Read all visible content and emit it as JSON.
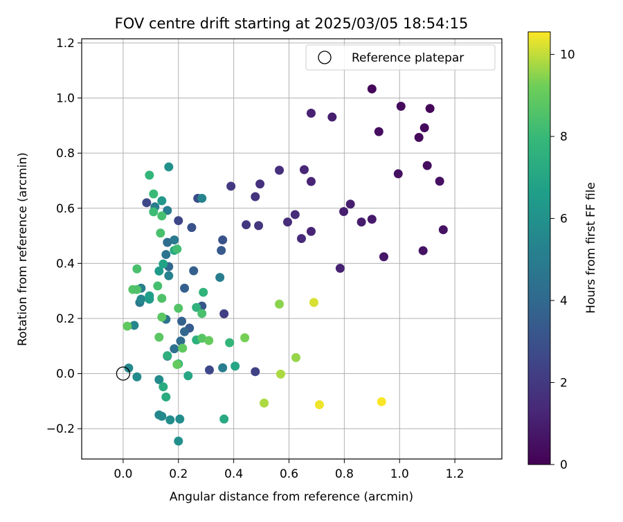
{
  "chart_data": {
    "type": "scatter",
    "title": "FOV centre drift starting at 2025/03/05 18:54:15",
    "xlabel": "Angular distance from reference (arcmin)",
    "ylabel": "Rotation from reference (arcmin)",
    "xlim": [
      -0.15,
      1.37
    ],
    "ylim": [
      -0.31,
      1.215
    ],
    "xticks": [
      0.0,
      0.2,
      0.4,
      0.6,
      0.8,
      1.0,
      1.2
    ],
    "xtick_labels": [
      "0.0",
      "0.2",
      "0.4",
      "0.6",
      "0.8",
      "1.0",
      "1.2"
    ],
    "yticks": [
      -0.2,
      0.0,
      0.2,
      0.4,
      0.6,
      0.8,
      1.0,
      1.2
    ],
    "ytick_labels": [
      "−0.2",
      "0.0",
      "0.2",
      "0.4",
      "0.6",
      "0.8",
      "1.0",
      "1.2"
    ],
    "grid": true,
    "legend": {
      "position": "top-right",
      "entries": [
        "Reference platepar"
      ]
    },
    "reference_point": {
      "x": 0.0,
      "y": 0.0
    },
    "colorbar": {
      "label": "Hours from first FF file",
      "min": 0,
      "max": 10.55,
      "ticks": [
        0,
        2,
        4,
        6,
        8,
        10
      ],
      "tick_labels": [
        "0",
        "2",
        "4",
        "6",
        "8",
        "10"
      ],
      "colormap": "viridis"
    },
    "points": [
      {
        "x": 0.9,
        "y": 1.033,
        "hours": 0.2
      },
      {
        "x": 1.005,
        "y": 0.97,
        "hours": 0.3
      },
      {
        "x": 1.11,
        "y": 0.962,
        "hours": 0.2
      },
      {
        "x": 1.09,
        "y": 0.892,
        "hours": 0.3
      },
      {
        "x": 1.07,
        "y": 0.857,
        "hours": 0.3
      },
      {
        "x": 0.925,
        "y": 0.878,
        "hours": 0.4
      },
      {
        "x": 1.1,
        "y": 0.755,
        "hours": 0.4
      },
      {
        "x": 0.995,
        "y": 0.725,
        "hours": 0.5
      },
      {
        "x": 1.145,
        "y": 0.698,
        "hours": 0.5
      },
      {
        "x": 1.158,
        "y": 0.522,
        "hours": 0.6
      },
      {
        "x": 1.085,
        "y": 0.446,
        "hours": 0.6
      },
      {
        "x": 0.943,
        "y": 0.424,
        "hours": 0.7
      },
      {
        "x": 0.9,
        "y": 0.56,
        "hours": 0.8
      },
      {
        "x": 0.862,
        "y": 0.55,
        "hours": 0.9
      },
      {
        "x": 0.822,
        "y": 0.615,
        "hours": 1.0
      },
      {
        "x": 0.798,
        "y": 0.588,
        "hours": 1.0
      },
      {
        "x": 0.785,
        "y": 0.382,
        "hours": 1.1
      },
      {
        "x": 0.756,
        "y": 0.931,
        "hours": 1.0
      },
      {
        "x": 0.68,
        "y": 0.945,
        "hours": 1.1
      },
      {
        "x": 0.68,
        "y": 0.697,
        "hours": 1.2
      },
      {
        "x": 0.655,
        "y": 0.74,
        "hours": 1.3
      },
      {
        "x": 0.68,
        "y": 0.516,
        "hours": 1.2
      },
      {
        "x": 0.645,
        "y": 0.49,
        "hours": 1.4
      },
      {
        "x": 0.622,
        "y": 0.577,
        "hours": 1.5
      },
      {
        "x": 0.595,
        "y": 0.55,
        "hours": 1.5
      },
      {
        "x": 0.565,
        "y": 0.738,
        "hours": 1.6
      },
      {
        "x": 0.495,
        "y": 0.688,
        "hours": 1.7
      },
      {
        "x": 0.478,
        "y": 0.642,
        "hours": 1.8
      },
      {
        "x": 0.49,
        "y": 0.537,
        "hours": 1.9
      },
      {
        "x": 0.445,
        "y": 0.54,
        "hours": 1.9
      },
      {
        "x": 0.39,
        "y": 0.68,
        "hours": 2.0
      },
      {
        "x": 0.365,
        "y": 0.217,
        "hours": 2.2
      },
      {
        "x": 0.478,
        "y": 0.007,
        "hours": 2.3
      },
      {
        "x": 0.312,
        "y": 0.013,
        "hours": 2.6
      },
      {
        "x": 0.36,
        "y": 0.485,
        "hours": 3.0
      },
      {
        "x": 0.355,
        "y": 0.447,
        "hours": 3.3
      },
      {
        "x": 0.27,
        "y": 0.636,
        "hours": 2.8
      },
      {
        "x": 0.248,
        "y": 0.53,
        "hours": 3.0
      },
      {
        "x": 0.2,
        "y": 0.555,
        "hours": 2.5
      },
      {
        "x": 0.085,
        "y": 0.62,
        "hours": 2.6
      },
      {
        "x": 0.285,
        "y": 0.245,
        "hours": 3.2
      },
      {
        "x": 0.24,
        "y": 0.165,
        "hours": 3.4
      },
      {
        "x": 0.255,
        "y": 0.373,
        "hours": 3.6
      },
      {
        "x": 0.222,
        "y": 0.31,
        "hours": 3.6
      },
      {
        "x": 0.212,
        "y": 0.19,
        "hours": 3.7
      },
      {
        "x": 0.222,
        "y": 0.152,
        "hours": 3.9
      },
      {
        "x": 0.208,
        "y": 0.118,
        "hours": 4.2
      },
      {
        "x": 0.16,
        "y": 0.063,
        "hours": 4.0
      },
      {
        "x": 0.185,
        "y": 0.09,
        "hours": 4.4
      },
      {
        "x": 0.155,
        "y": 0.197,
        "hours": 4.5
      },
      {
        "x": 0.165,
        "y": 0.388,
        "hours": 4.0
      },
      {
        "x": 0.155,
        "y": 0.432,
        "hours": 4.5
      },
      {
        "x": 0.16,
        "y": 0.476,
        "hours": 4.2
      },
      {
        "x": 0.185,
        "y": 0.485,
        "hours": 4.8
      },
      {
        "x": 0.165,
        "y": 0.355,
        "hours": 5.2
      },
      {
        "x": 0.35,
        "y": 0.349,
        "hours": 5.0
      },
      {
        "x": 0.285,
        "y": 0.636,
        "hours": 5.3
      },
      {
        "x": 0.115,
        "y": 0.605,
        "hours": 4.9
      },
      {
        "x": 0.16,
        "y": 0.592,
        "hours": 5.0
      },
      {
        "x": 0.36,
        "y": 0.021,
        "hours": 5.0
      },
      {
        "x": 0.06,
        "y": 0.258,
        "hours": 4.8
      },
      {
        "x": 0.065,
        "y": 0.31,
        "hours": 5.0
      },
      {
        "x": 0.065,
        "y": 0.27,
        "hours": 5.5
      },
      {
        "x": 0.04,
        "y": 0.175,
        "hours": 5.5
      },
      {
        "x": 0.02,
        "y": 0.02,
        "hours": 5.6
      },
      {
        "x": 0.05,
        "y": -0.012,
        "hours": 5.7
      },
      {
        "x": 0.13,
        "y": -0.022,
        "hours": 5.7
      },
      {
        "x": 0.13,
        "y": -0.15,
        "hours": 5.5
      },
      {
        "x": 0.14,
        "y": -0.155,
        "hours": 5.6
      },
      {
        "x": 0.17,
        "y": -0.168,
        "hours": 5.8
      },
      {
        "x": 0.205,
        "y": -0.165,
        "hours": 5.8
      },
      {
        "x": 0.2,
        "y": -0.245,
        "hours": 5.9
      },
      {
        "x": 0.165,
        "y": 0.75,
        "hours": 6.0
      },
      {
        "x": 0.14,
        "y": 0.627,
        "hours": 6.3
      },
      {
        "x": 0.095,
        "y": 0.27,
        "hours": 6.5
      },
      {
        "x": 0.095,
        "y": 0.282,
        "hours": 6.6
      },
      {
        "x": 0.13,
        "y": 0.372,
        "hours": 6.4
      },
      {
        "x": 0.145,
        "y": 0.398,
        "hours": 6.8
      },
      {
        "x": 0.235,
        "y": -0.008,
        "hours": 7.0
      },
      {
        "x": 0.405,
        "y": 0.027,
        "hours": 7.0
      },
      {
        "x": 0.365,
        "y": -0.165,
        "hours": 7.2
      },
      {
        "x": 0.145,
        "y": -0.048,
        "hours": 7.3
      },
      {
        "x": 0.155,
        "y": -0.085,
        "hours": 7.3
      },
      {
        "x": 0.185,
        "y": 0.447,
        "hours": 7.2
      },
      {
        "x": 0.16,
        "y": 0.065,
        "hours": 7.5
      },
      {
        "x": 0.265,
        "y": 0.122,
        "hours": 7.5
      },
      {
        "x": 0.265,
        "y": 0.24,
        "hours": 7.6
      },
      {
        "x": 0.29,
        "y": 0.295,
        "hours": 7.7
      },
      {
        "x": 0.385,
        "y": 0.112,
        "hours": 7.8
      },
      {
        "x": 0.2,
        "y": 0.035,
        "hours": 7.7
      },
      {
        "x": 0.095,
        "y": 0.72,
        "hours": 7.8
      },
      {
        "x": 0.11,
        "y": 0.652,
        "hours": 8.0
      },
      {
        "x": 0.11,
        "y": 0.587,
        "hours": 8.1
      },
      {
        "x": 0.14,
        "y": 0.572,
        "hours": 8.3
      },
      {
        "x": 0.135,
        "y": 0.51,
        "hours": 8.4
      },
      {
        "x": 0.195,
        "y": 0.452,
        "hours": 8.2
      },
      {
        "x": 0.05,
        "y": 0.38,
        "hours": 8.4
      },
      {
        "x": 0.125,
        "y": 0.318,
        "hours": 8.3
      },
      {
        "x": 0.035,
        "y": 0.305,
        "hours": 8.6
      },
      {
        "x": 0.05,
        "y": 0.305,
        "hours": 8.5
      },
      {
        "x": 0.14,
        "y": 0.273,
        "hours": 8.5
      },
      {
        "x": 0.2,
        "y": 0.237,
        "hours": 8.6
      },
      {
        "x": 0.285,
        "y": 0.218,
        "hours": 8.4
      },
      {
        "x": 0.14,
        "y": 0.205,
        "hours": 8.8
      },
      {
        "x": 0.015,
        "y": 0.172,
        "hours": 8.9
      },
      {
        "x": 0.13,
        "y": 0.132,
        "hours": 8.8
      },
      {
        "x": 0.285,
        "y": 0.128,
        "hours": 8.7
      },
      {
        "x": 0.31,
        "y": 0.12,
        "hours": 9.0
      },
      {
        "x": 0.215,
        "y": 0.092,
        "hours": 8.9
      },
      {
        "x": 0.195,
        "y": 0.033,
        "hours": 9.0
      },
      {
        "x": 0.44,
        "y": 0.13,
        "hours": 9.3
      },
      {
        "x": 0.565,
        "y": 0.252,
        "hours": 9.5
      },
      {
        "x": 0.625,
        "y": 0.058,
        "hours": 9.6
      },
      {
        "x": 0.57,
        "y": -0.002,
        "hours": 9.8
      },
      {
        "x": 0.51,
        "y": -0.107,
        "hours": 9.8
      },
      {
        "x": 0.69,
        "y": 0.258,
        "hours": 10.2
      },
      {
        "x": 0.71,
        "y": -0.113,
        "hours": 10.4
      },
      {
        "x": 0.935,
        "y": -0.102,
        "hours": 10.5
      }
    ]
  }
}
